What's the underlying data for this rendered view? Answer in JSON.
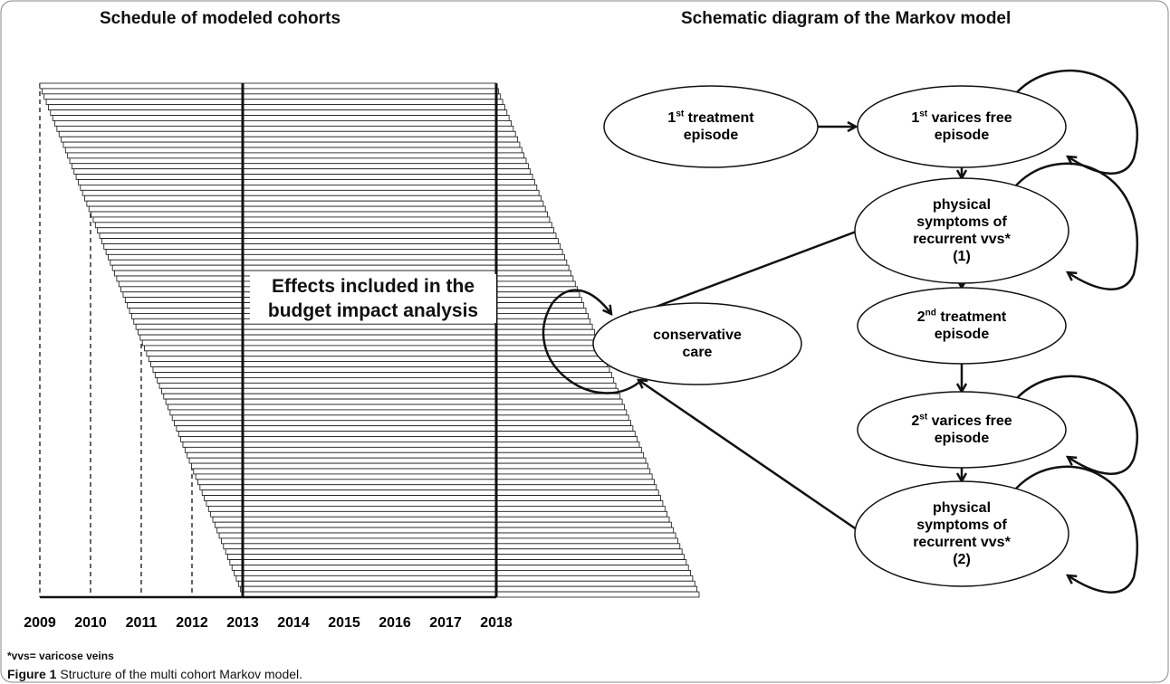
{
  "left_panel": {
    "title": "Schedule of modeled cohorts",
    "years": [
      "2009",
      "2010",
      "2011",
      "2012",
      "2013",
      "2014",
      "2015",
      "2016",
      "2017",
      "2018"
    ],
    "annotation": {
      "line1": "Effects included in the",
      "line2": "budget impact analysis"
    }
  },
  "right_panel": {
    "title": "Schematic diagram of the Markov model",
    "nodes": [
      {
        "lines": [
          [
            {
              "t": "1"
            },
            {
              "sup": "st"
            },
            {
              "t": " treatment"
            }
          ],
          [
            {
              "t": "episode"
            }
          ]
        ]
      },
      {
        "lines": [
          [
            {
              "t": "1"
            },
            {
              "sup": "st"
            },
            {
              "t": " varices free"
            }
          ],
          [
            {
              "t": "episode"
            }
          ]
        ]
      },
      {
        "lines": [
          [
            {
              "t": "physical"
            }
          ],
          [
            {
              "t": "symptoms of"
            }
          ],
          [
            {
              "t": "recurrent vvs*"
            }
          ],
          [
            {
              "t": "(1)"
            }
          ]
        ]
      },
      {
        "lines": [
          [
            {
              "t": "2"
            },
            {
              "sup": "nd"
            },
            {
              "t": " treatment"
            }
          ],
          [
            {
              "t": "episode"
            }
          ]
        ]
      },
      {
        "lines": [
          [
            {
              "t": "2"
            },
            {
              "sup": "st"
            },
            {
              "t": " varices free"
            }
          ],
          [
            {
              "t": "episode"
            }
          ]
        ]
      },
      {
        "lines": [
          [
            {
              "t": "physical"
            }
          ],
          [
            {
              "t": "symptoms of"
            }
          ],
          [
            {
              "t": "recurrent vvs*"
            }
          ],
          [
            {
              "t": "(2)"
            }
          ]
        ]
      },
      {
        "lines": [
          [
            {
              "t": "conservative"
            }
          ],
          [
            {
              "t": "care"
            }
          ]
        ]
      }
    ]
  },
  "footnote": "*vvs= varicose veins",
  "caption": {
    "label": "Figure 1",
    "text": "Structure of the multi cohort Markov model."
  }
}
